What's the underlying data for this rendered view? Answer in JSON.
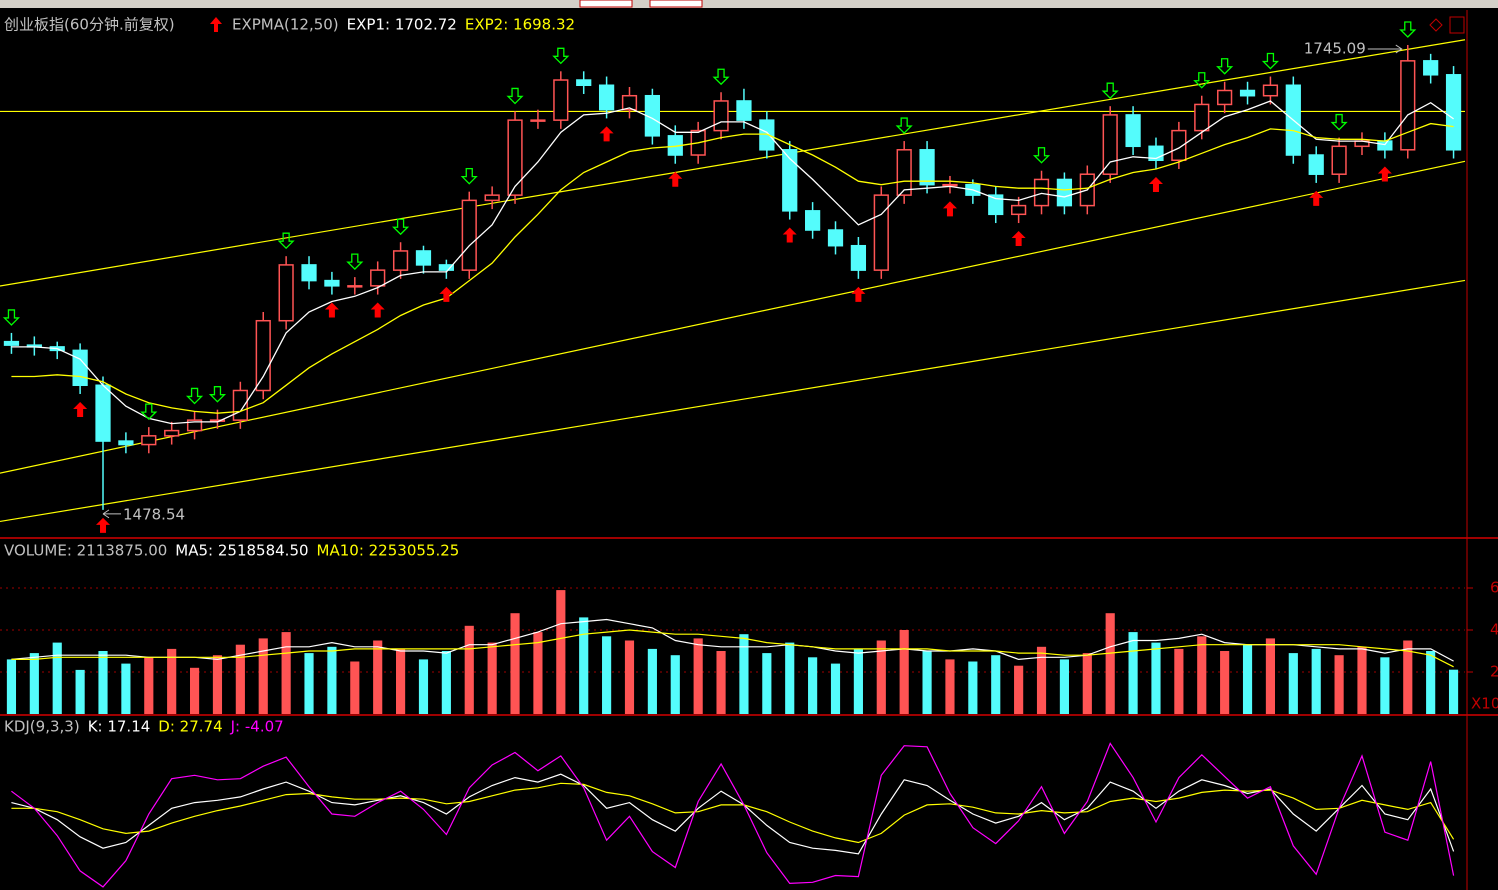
{
  "chart_data": [
    {
      "type": "candlestick",
      "title": "创业板指(60分钟.前复权)",
      "indicator": "EXPMA(12,50)",
      "up_color": "#ff5454",
      "down_color": "#54fcfc",
      "ylim": [
        1463,
        1764
      ],
      "open": [
        1575,
        1573,
        1572,
        1570,
        1550,
        1518,
        1516,
        1521,
        1524,
        1530,
        1530,
        1547,
        1587,
        1619,
        1610,
        1607,
        1607,
        1616,
        1627,
        1619,
        1616,
        1656,
        1659,
        1702,
        1702,
        1725,
        1722,
        1708,
        1716,
        1693,
        1682,
        1696,
        1713,
        1702,
        1685,
        1650,
        1639,
        1630,
        1616,
        1659,
        1685,
        1665,
        1665,
        1659,
        1648,
        1653,
        1668,
        1653,
        1671,
        1705,
        1687,
        1679,
        1696,
        1711,
        1719,
        1716,
        1722,
        1682,
        1671,
        1687,
        1690,
        1685,
        1736,
        1728
      ],
      "high": [
        1580,
        1578,
        1575,
        1574,
        1555,
        1523,
        1526,
        1529,
        1535,
        1536,
        1552,
        1592,
        1624,
        1624,
        1615,
        1612,
        1621,
        1632,
        1630,
        1622,
        1661,
        1664,
        1707,
        1708,
        1730,
        1730,
        1727,
        1721,
        1720,
        1699,
        1701,
        1718,
        1720,
        1707,
        1690,
        1655,
        1644,
        1635,
        1664,
        1690,
        1690,
        1670,
        1668,
        1664,
        1658,
        1673,
        1672,
        1676,
        1710,
        1710,
        1692,
        1701,
        1716,
        1724,
        1724,
        1727,
        1727,
        1687,
        1692,
        1695,
        1695,
        1745.09,
        1740,
        1733
      ],
      "low": [
        1568,
        1567,
        1565,
        1545,
        1478.54,
        1511,
        1511,
        1516,
        1519,
        1525,
        1525,
        1542,
        1582,
        1605,
        1602,
        1602,
        1602,
        1611,
        1614,
        1611,
        1611,
        1651,
        1654,
        1697,
        1697,
        1717,
        1703,
        1703,
        1688,
        1677,
        1677,
        1691,
        1697,
        1680,
        1645,
        1634,
        1625,
        1611,
        1611,
        1654,
        1660,
        1660,
        1654,
        1643,
        1643,
        1648,
        1648,
        1648,
        1666,
        1682,
        1674,
        1674,
        1691,
        1706,
        1711,
        1711,
        1677,
        1666,
        1666,
        1682,
        1680,
        1680,
        1723,
        1680
      ],
      "close": [
        1573,
        1572,
        1570,
        1550,
        1518,
        1516,
        1521,
        1524,
        1530,
        1530,
        1547,
        1587,
        1619,
        1610,
        1607,
        1607,
        1616,
        1627,
        1619,
        1616,
        1656,
        1659,
        1702,
        1702,
        1725,
        1722,
        1708,
        1716,
        1693,
        1682,
        1696,
        1713,
        1702,
        1685,
        1650,
        1639,
        1630,
        1616,
        1659,
        1685,
        1665,
        1665,
        1659,
        1648,
        1653,
        1668,
        1653,
        1671,
        1705,
        1687,
        1679,
        1696,
        1711,
        1719,
        1716,
        1722,
        1682,
        1671,
        1687,
        1690,
        1685,
        1736,
        1728,
        1685
      ],
      "series": [
        {
          "name": "EXP1: 1702.72",
          "color": "#ffffff",
          "values": [
            1572,
            1572,
            1571,
            1565,
            1550,
            1538,
            1531,
            1528,
            1529,
            1529,
            1535,
            1555,
            1580,
            1592,
            1598,
            1601,
            1606,
            1613,
            1615,
            1615,
            1630,
            1642,
            1664,
            1678,
            1695,
            1705,
            1706,
            1709,
            1703,
            1695,
            1695,
            1701,
            1701,
            1695,
            1680,
            1668,
            1655,
            1642,
            1648,
            1662,
            1663,
            1664,
            1662,
            1657,
            1656,
            1660,
            1658,
            1662,
            1678,
            1681,
            1680,
            1686,
            1695,
            1704,
            1708,
            1713,
            1702,
            1691,
            1690,
            1690,
            1688,
            1705,
            1712,
            1702.72
          ]
        },
        {
          "name": "EXP2: 1698.32",
          "color": "#ffff00",
          "values": [
            1555,
            1555,
            1556,
            1555,
            1552,
            1545,
            1540,
            1537,
            1535,
            1534,
            1535,
            1540,
            1550,
            1560,
            1568,
            1575,
            1582,
            1590,
            1596,
            1600,
            1610,
            1620,
            1635,
            1648,
            1662,
            1672,
            1678,
            1684,
            1686,
            1687,
            1689,
            1692,
            1694,
            1694,
            1688,
            1682,
            1675,
            1667,
            1665,
            1667,
            1667,
            1667,
            1666,
            1664,
            1663,
            1663,
            1662,
            1663,
            1668,
            1672,
            1674,
            1678,
            1683,
            1688,
            1692,
            1697,
            1696,
            1692,
            1691,
            1691,
            1690,
            1695,
            1700,
            1698.32
          ]
        }
      ],
      "trendline_color": "#ffff00",
      "trendlines": [
        {
          "x": [
            0,
            63
          ],
          "y": [
            1608,
            1747
          ]
        },
        {
          "x": [
            0,
            63
          ],
          "y": [
            1501,
            1677
          ]
        },
        {
          "x": [
            0,
            63
          ],
          "y": [
            1473,
            1609
          ]
        },
        {
          "x": [
            0,
            63
          ],
          "y": [
            1707,
            1707
          ]
        }
      ],
      "buy_color": "#ff0000",
      "sell_color": "#00ff00",
      "buy_signals": [
        3,
        4,
        14,
        16,
        19,
        26,
        29,
        34,
        37,
        41,
        44,
        50,
        57,
        60
      ],
      "sell_signals": [
        0,
        6,
        8,
        9,
        12,
        15,
        17,
        20,
        22,
        24,
        31,
        39,
        45,
        48,
        52,
        53,
        55,
        58,
        61
      ],
      "annotations": [
        {
          "text": "1745.09",
          "x": 61,
          "y": 1745.09
        },
        {
          "text": "1478.54",
          "x": 4,
          "y": 1478.54
        }
      ]
    },
    {
      "type": "bar",
      "ylim": [
        0,
        8
      ],
      "yticks": [
        2,
        4,
        6
      ],
      "y_unit": "X10",
      "up_color": "#ff5454",
      "down_color": "#54fcfc",
      "series": [
        {
          "name": "VOLUME: 2113875.00",
          "color": "#c0c0c0",
          "values": [
            2.6,
            2.9,
            3.4,
            2.1,
            3.0,
            2.4,
            2.7,
            3.1,
            2.2,
            2.8,
            3.3,
            3.6,
            3.9,
            2.9,
            3.2,
            2.5,
            3.5,
            3.1,
            2.6,
            3.0,
            4.2,
            3.4,
            4.8,
            3.9,
            5.9,
            4.6,
            3.7,
            3.5,
            3.1,
            2.8,
            3.6,
            3.0,
            3.8,
            2.9,
            3.4,
            2.7,
            2.4,
            3.1,
            3.5,
            4.0,
            3.0,
            2.6,
            2.5,
            2.8,
            2.3,
            3.2,
            2.6,
            2.9,
            4.8,
            3.9,
            3.4,
            3.1,
            3.7,
            3.0,
            3.3,
            3.6,
            2.9,
            3.1,
            2.8,
            3.2,
            2.7,
            3.5,
            3.0,
            2.11
          ]
        },
        {
          "name": "MA5: 2518584.50",
          "color": "#ffffff",
          "values": [
            2.6,
            2.7,
            2.8,
            2.8,
            2.8,
            2.8,
            2.7,
            2.7,
            2.7,
            2.6,
            2.8,
            3.0,
            3.2,
            3.2,
            3.4,
            3.2,
            3.2,
            3.0,
            3.0,
            2.9,
            3.3,
            3.3,
            3.6,
            3.9,
            4.3,
            4.4,
            4.5,
            4.3,
            4.1,
            3.5,
            3.3,
            3.2,
            3.2,
            3.2,
            3.3,
            3.2,
            3.0,
            2.9,
            3.0,
            3.1,
            3.0,
            3.0,
            3.1,
            3.0,
            2.6,
            2.7,
            2.7,
            2.8,
            3.2,
            3.5,
            3.5,
            3.6,
            3.8,
            3.4,
            3.3,
            3.3,
            3.3,
            3.2,
            3.1,
            3.1,
            2.9,
            3.1,
            3.1,
            2.52
          ]
        },
        {
          "name": "MA10: 2253055.25",
          "color": "#ffff00",
          "values": [
            2.6,
            2.6,
            2.7,
            2.7,
            2.7,
            2.7,
            2.7,
            2.7,
            2.7,
            2.7,
            2.7,
            2.8,
            2.9,
            3.0,
            3.0,
            3.1,
            3.1,
            3.1,
            3.1,
            3.1,
            3.1,
            3.2,
            3.3,
            3.4,
            3.6,
            3.8,
            3.9,
            4.0,
            3.9,
            3.8,
            3.8,
            3.7,
            3.6,
            3.4,
            3.3,
            3.2,
            3.1,
            3.1,
            3.1,
            3.1,
            3.1,
            3.0,
            3.0,
            3.0,
            2.9,
            2.9,
            2.8,
            2.8,
            2.9,
            3.0,
            3.1,
            3.2,
            3.3,
            3.3,
            3.3,
            3.3,
            3.3,
            3.3,
            3.3,
            3.2,
            3.1,
            3.0,
            2.8,
            2.25
          ]
        }
      ]
    },
    {
      "type": "line",
      "title": "KDJ(9,3,3)",
      "ylim": [
        -15,
        115
      ],
      "series": [
        {
          "name": "K: 17.14",
          "color": "#ffffff",
          "values": [
            60,
            55,
            45,
            30,
            20,
            25,
            40,
            55,
            60,
            62,
            65,
            72,
            78,
            70,
            60,
            58,
            62,
            66,
            60,
            50,
            65,
            75,
            82,
            78,
            85,
            75,
            55,
            60,
            45,
            35,
            55,
            70,
            58,
            40,
            25,
            20,
            18,
            15,
            50,
            80,
            75,
            62,
            50,
            42,
            48,
            60,
            45,
            55,
            78,
            70,
            55,
            70,
            80,
            75,
            68,
            72,
            50,
            35,
            55,
            75,
            50,
            45,
            72,
            17.14
          ]
        },
        {
          "name": "D: 27.74",
          "color": "#ffff00",
          "values": [
            55,
            55,
            52,
            45,
            37,
            33,
            35,
            42,
            48,
            53,
            57,
            62,
            67,
            68,
            65,
            63,
            63,
            64,
            63,
            59,
            61,
            66,
            71,
            73,
            77,
            76,
            69,
            66,
            59,
            51,
            52,
            58,
            58,
            52,
            43,
            35,
            29,
            25,
            33,
            49,
            58,
            59,
            56,
            51,
            50,
            53,
            51,
            52,
            61,
            64,
            61,
            64,
            69,
            71,
            70,
            71,
            64,
            54,
            55,
            62,
            58,
            54,
            60,
            27.74
          ]
        },
        {
          "name": "J: -4.07",
          "color": "#ff00ff",
          "values": [
            70,
            55,
            31,
            0,
            -14,
            9,
            50,
            81,
            84,
            80,
            81,
            92,
            100,
            74,
            50,
            48,
            60,
            70,
            54,
            32,
            73,
            93,
            104,
            88,
            101,
            73,
            27,
            48,
            17,
            3,
            61,
            94,
            58,
            16,
            -11,
            -10,
            -4,
            -5,
            84,
            110,
            109,
            68,
            38,
            24,
            44,
            74,
            33,
            61,
            112,
            82,
            43,
            82,
            102,
            83,
            64,
            74,
            22,
            -3,
            55,
            101,
            34,
            27,
            96,
            -4.07
          ]
        }
      ]
    }
  ]
}
